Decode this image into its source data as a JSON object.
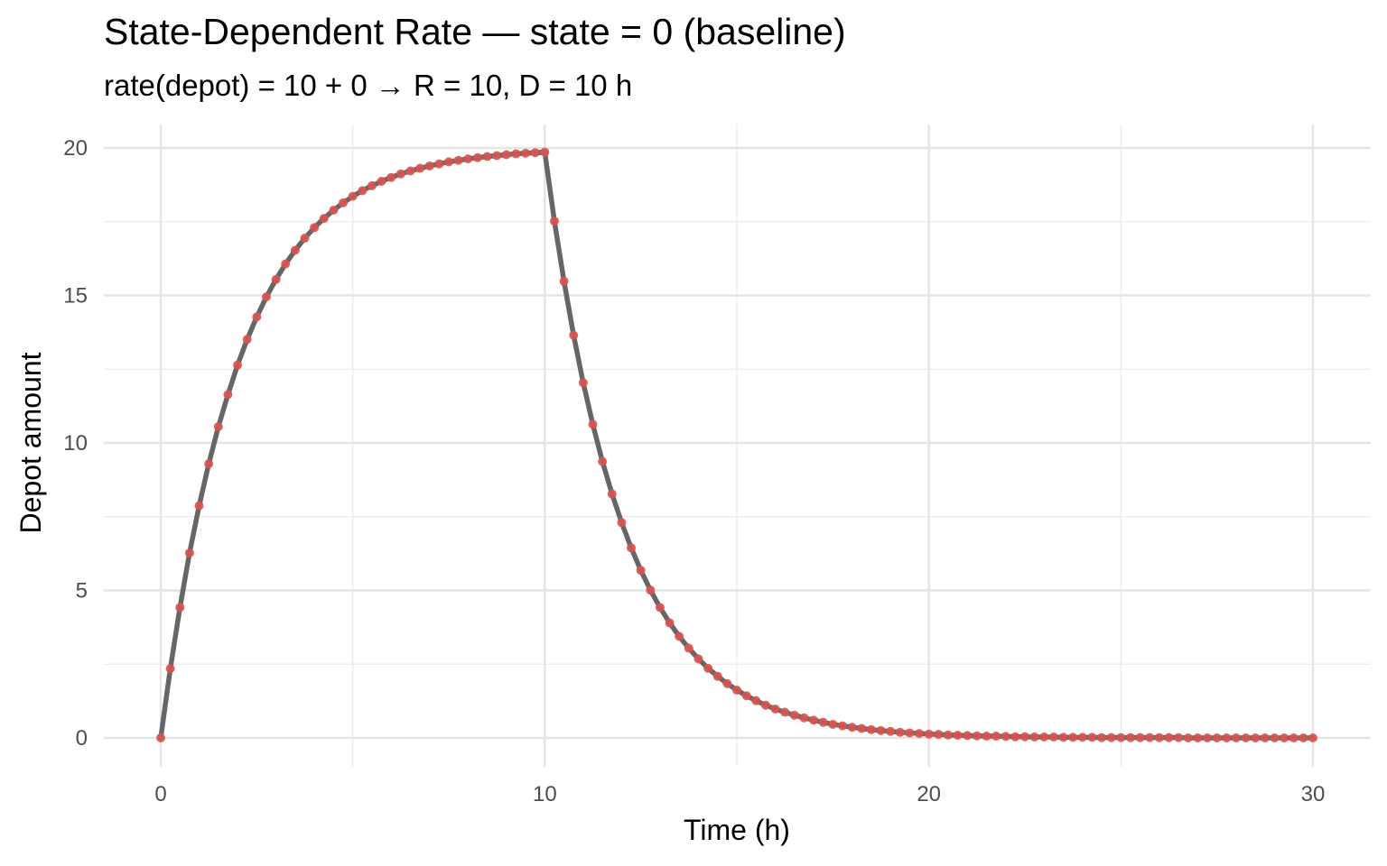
{
  "chart_data": {
    "type": "line",
    "title": "State-Dependent Rate — state = 0 (baseline)",
    "subtitle": "rate(depot) = 10 + 0  →  R = 10, D = 10 h",
    "xlabel": "Time (h)",
    "ylabel": "Depot amount",
    "xlim": [
      0,
      30
    ],
    "ylim": [
      0,
      20
    ],
    "x_ticks": [
      0,
      10,
      20,
      30
    ],
    "y_ticks": [
      0,
      5,
      10,
      15,
      20
    ],
    "grid": true,
    "legend": "none",
    "infusion_rate": 10,
    "infusion_duration": 10,
    "sample_interval": 0.25,
    "series": [
      {
        "line_color": "#666666",
        "point_color": "#d9534f",
        "x_range": [
          0,
          30
        ],
        "values_note": "",
        "points": [
          [
            0,
            0
          ],
          [
            0.25,
            2.35
          ],
          [
            0.5,
            4.42
          ],
          [
            0.75,
            6.27
          ],
          [
            1,
            7.87
          ],
          [
            1.25,
            9.29
          ],
          [
            1.5,
            10.55
          ],
          [
            1.75,
            11.64
          ],
          [
            2,
            12.64
          ],
          [
            2.25,
            13.51
          ],
          [
            2.5,
            14.27
          ],
          [
            2.75,
            14.95
          ],
          [
            3,
            15.54
          ],
          [
            3.25,
            16.07
          ],
          [
            3.5,
            16.53
          ],
          [
            3.75,
            16.94
          ],
          [
            4,
            17.3
          ],
          [
            4.25,
            17.61
          ],
          [
            4.5,
            17.89
          ],
          [
            4.75,
            18.14
          ],
          [
            5,
            18.36
          ],
          [
            5.25,
            18.55
          ],
          [
            5.5,
            18.72
          ],
          [
            5.75,
            18.87
          ],
          [
            6,
            19.0
          ],
          [
            6.25,
            19.12
          ],
          [
            6.5,
            19.22
          ],
          [
            6.75,
            19.31
          ],
          [
            7,
            19.39
          ],
          [
            7.25,
            19.46
          ],
          [
            7.5,
            19.53
          ],
          [
            7.75,
            19.58
          ],
          [
            8,
            19.63
          ],
          [
            8.25,
            19.67
          ],
          [
            8.5,
            19.71
          ],
          [
            8.75,
            19.74
          ],
          [
            9,
            19.77
          ],
          [
            9.25,
            19.8
          ],
          [
            9.5,
            19.82
          ],
          [
            9.75,
            19.84
          ],
          [
            10,
            19.86
          ],
          [
            10.25,
            17.52
          ],
          [
            10.5,
            15.48
          ],
          [
            10.75,
            13.65
          ],
          [
            11,
            12.04
          ],
          [
            11.25,
            10.63
          ],
          [
            11.5,
            9.37
          ],
          [
            11.75,
            8.27
          ],
          [
            12,
            7.3
          ],
          [
            12.25,
            6.44
          ],
          [
            12.5,
            5.68
          ],
          [
            12.75,
            5.01
          ],
          [
            13,
            4.42
          ],
          [
            13.25,
            3.9
          ],
          [
            13.5,
            3.44
          ],
          [
            13.75,
            3.04
          ],
          [
            14,
            2.68
          ],
          [
            14.25,
            2.36
          ],
          [
            14.5,
            2.09
          ],
          [
            14.75,
            1.84
          ],
          [
            15,
            1.62
          ],
          [
            15.25,
            1.43
          ],
          [
            15.5,
            1.26
          ],
          [
            15.75,
            1.11
          ],
          [
            16,
            0.98
          ],
          [
            16.25,
            0.87
          ],
          [
            16.5,
            0.77
          ],
          [
            16.75,
            0.68
          ],
          [
            17,
            0.6
          ],
          [
            17.25,
            0.53
          ],
          [
            17.5,
            0.46
          ],
          [
            17.75,
            0.41
          ],
          [
            18,
            0.36
          ],
          [
            18.25,
            0.32
          ],
          [
            18.5,
            0.28
          ],
          [
            18.75,
            0.25
          ],
          [
            19,
            0.22
          ],
          [
            19.25,
            0.19
          ],
          [
            19.5,
            0.17
          ],
          [
            19.75,
            0.15
          ],
          [
            20,
            0.13
          ],
          [
            20.25,
            0.12
          ],
          [
            20.5,
            0.1
          ],
          [
            20.75,
            0.09
          ],
          [
            21,
            0.08
          ],
          [
            21.25,
            0.07
          ],
          [
            21.5,
            0.06
          ],
          [
            21.75,
            0.06
          ],
          [
            22,
            0.05
          ],
          [
            22.25,
            0.04
          ],
          [
            22.5,
            0.04
          ],
          [
            22.75,
            0.03
          ],
          [
            23,
            0.03
          ],
          [
            23.25,
            0.03
          ],
          [
            23.5,
            0.02
          ],
          [
            23.75,
            0.02
          ],
          [
            24,
            0.02
          ],
          [
            24.25,
            0.02
          ],
          [
            24.5,
            0.01
          ],
          [
            24.75,
            0.01
          ],
          [
            25,
            0.01
          ],
          [
            25.25,
            0.01
          ],
          [
            25.5,
            0.01
          ],
          [
            25.75,
            0.01
          ],
          [
            26,
            0.01
          ],
          [
            26.25,
            0.01
          ],
          [
            26.5,
            0.01
          ],
          [
            26.75,
            0.0
          ],
          [
            27,
            0.0
          ],
          [
            27.25,
            0.0
          ],
          [
            27.5,
            0.0
          ],
          [
            27.75,
            0.0
          ],
          [
            28,
            0.0
          ],
          [
            28.25,
            0.0
          ],
          [
            28.5,
            0.0
          ],
          [
            28.75,
            0.0
          ],
          [
            29,
            0.0
          ],
          [
            29.25,
            0.0
          ],
          [
            29.5,
            0.0
          ],
          [
            29.75,
            0.0
          ],
          [
            30,
            0.0
          ]
        ]
      }
    ]
  }
}
